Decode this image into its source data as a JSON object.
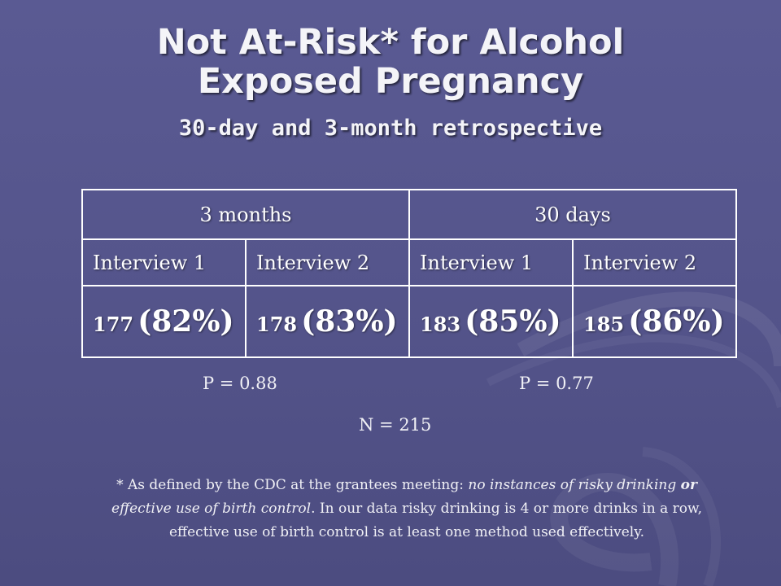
{
  "slide": {
    "title_line1": "Not At-Risk* for Alcohol",
    "title_line2": "Exposed Pregnancy",
    "subtitle": "30-day and 3-month retrospective"
  },
  "table": {
    "periods": [
      "3 months",
      "30 days"
    ],
    "interviews": [
      "Interview 1",
      "Interview 2",
      "Interview 1",
      "Interview 2"
    ],
    "values": [
      {
        "count": "177",
        "percent": "(82%)"
      },
      {
        "count": "178",
        "percent": "(83%)"
      },
      {
        "count": "183",
        "percent": "(85%)"
      },
      {
        "count": "185",
        "percent": "(86%)"
      }
    ]
  },
  "stats": {
    "p_3months": "P = 0.88",
    "p_30days": "P = 0.77",
    "n": "N = 215"
  },
  "footnote": {
    "part1": "* As defined by the CDC at the grantees meeting: ",
    "italic1": "no instances of  risky drinking ",
    "bold_or": "or",
    "italic2": " effective use of  birth control",
    "part2": ". In our data risky drinking is 4 or more drinks in a row, effective use of  birth control is at least one method used effectively."
  },
  "colors": {
    "background": "#55558c",
    "text": "#ffffff"
  }
}
